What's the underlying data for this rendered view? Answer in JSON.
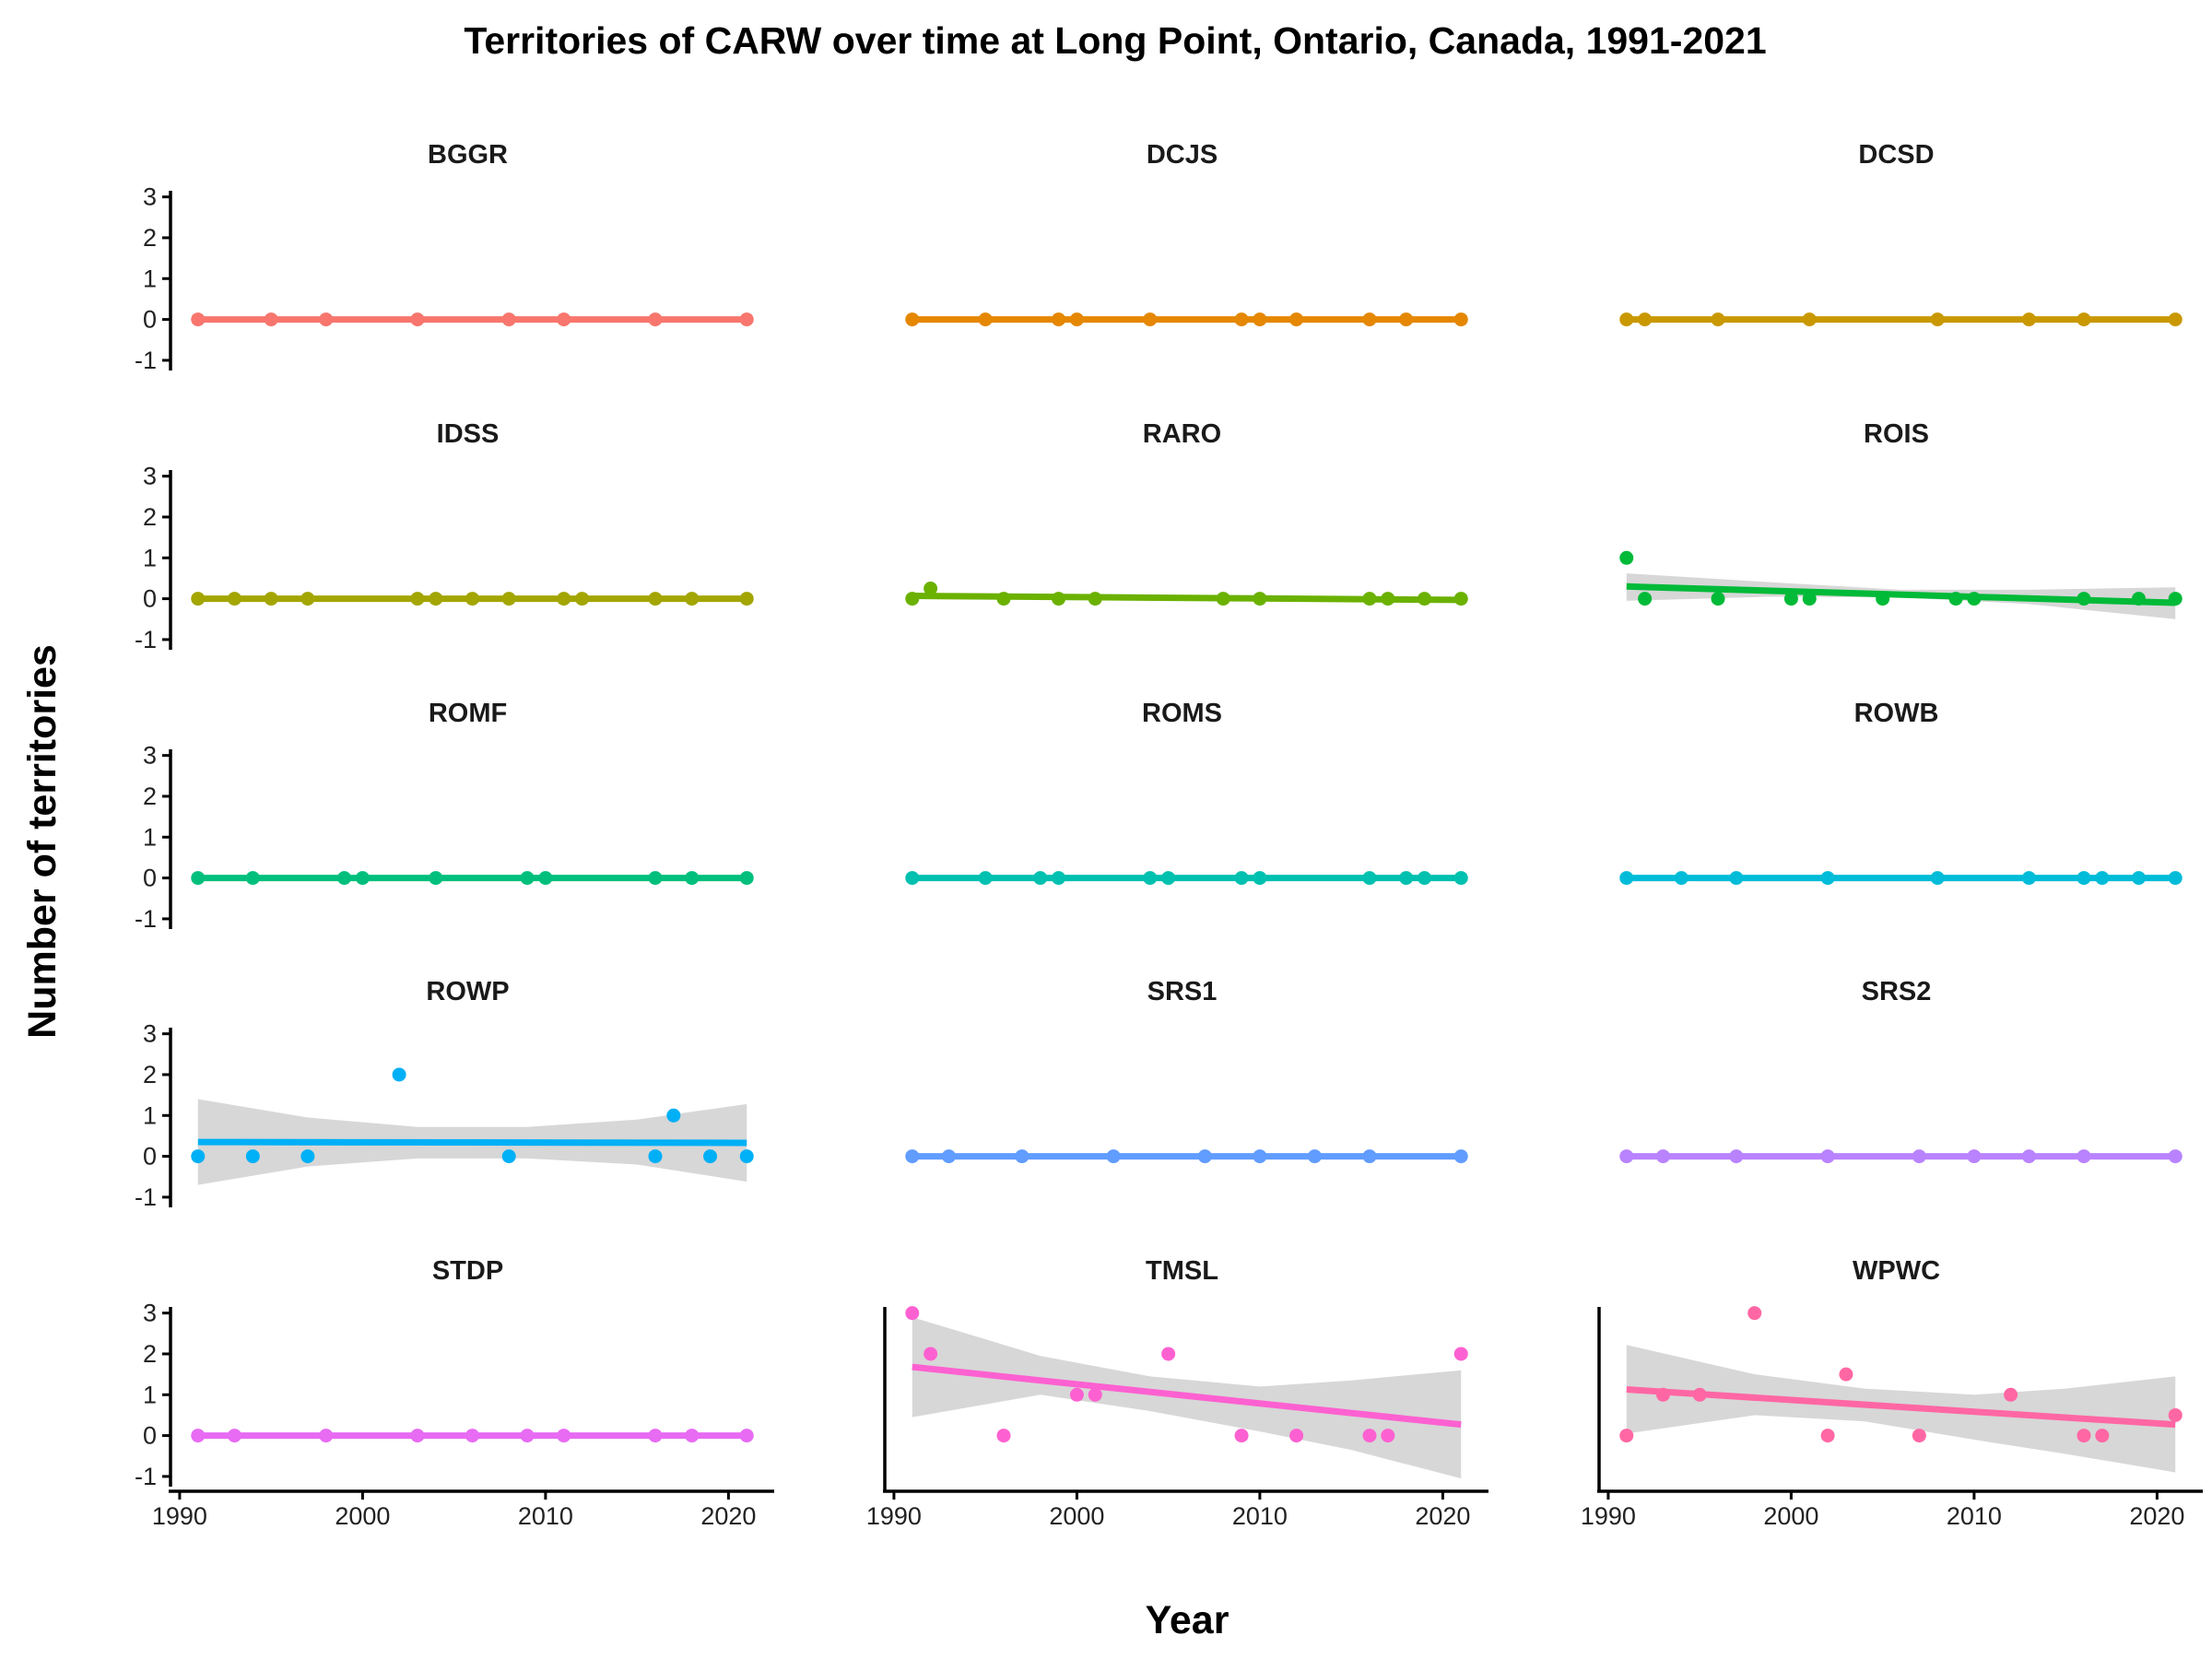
{
  "chart_data": {
    "type": "scatter",
    "title": "Territories of CARW over time at Long Point, Ontario, Canada, 1991-2021",
    "xlabel": "Year",
    "ylabel": "Number of territories",
    "xlim": [
      1989.5,
      2022.5
    ],
    "ylim": [
      -1.25,
      3.15
    ],
    "y_ticks": [
      "3",
      "2",
      "1",
      "0",
      "-1"
    ],
    "x_ticks": [
      "1990",
      "2000",
      "2010",
      "2020"
    ],
    "grid": false,
    "legend": "none",
    "panels": [
      {
        "name": "BGGR",
        "color": "#F8766D",
        "points": [
          [
            1991,
            0
          ],
          [
            1995,
            0
          ],
          [
            1998,
            0
          ],
          [
            2003,
            0
          ],
          [
            2008,
            0
          ],
          [
            2011,
            0
          ],
          [
            2016,
            0
          ],
          [
            2021,
            0
          ]
        ],
        "trend": [
          1991,
          0,
          2021,
          0
        ],
        "band": null
      },
      {
        "name": "DCJS",
        "color": "#E58700",
        "points": [
          [
            1991,
            0
          ],
          [
            1995,
            0
          ],
          [
            1999,
            0
          ],
          [
            2000,
            0
          ],
          [
            2004,
            0
          ],
          [
            2009,
            0
          ],
          [
            2010,
            0
          ],
          [
            2012,
            0
          ],
          [
            2016,
            0
          ],
          [
            2018,
            0
          ],
          [
            2021,
            0
          ]
        ],
        "trend": [
          1991,
          0,
          2021,
          0
        ],
        "band": null
      },
      {
        "name": "DCSD",
        "color": "#C99800",
        "points": [
          [
            1991,
            0
          ],
          [
            1992,
            0
          ],
          [
            1996,
            0
          ],
          [
            2001,
            0
          ],
          [
            2008,
            0
          ],
          [
            2013,
            0
          ],
          [
            2016,
            0
          ],
          [
            2021,
            0
          ]
        ],
        "trend": [
          1991,
          0,
          2021,
          0
        ],
        "band": null
      },
      {
        "name": "IDSS",
        "color": "#A3A500",
        "points": [
          [
            1991,
            0
          ],
          [
            1993,
            0
          ],
          [
            1995,
            0
          ],
          [
            1997,
            0
          ],
          [
            2003,
            0
          ],
          [
            2004,
            0
          ],
          [
            2006,
            0
          ],
          [
            2008,
            0
          ],
          [
            2011,
            0
          ],
          [
            2012,
            0
          ],
          [
            2016,
            0
          ],
          [
            2018,
            0
          ],
          [
            2021,
            0
          ]
        ],
        "trend": [
          1991,
          0,
          2021,
          0
        ],
        "band": null
      },
      {
        "name": "RARO",
        "color": "#6BB100",
        "points": [
          [
            1991,
            0
          ],
          [
            1992,
            0.25
          ],
          [
            1996,
            0
          ],
          [
            1999,
            0
          ],
          [
            2001,
            0
          ],
          [
            2008,
            0
          ],
          [
            2010,
            0
          ],
          [
            2016,
            0
          ],
          [
            2017,
            0
          ],
          [
            2019,
            0
          ],
          [
            2021,
            0
          ]
        ],
        "trend": [
          1991,
          0.07,
          2021,
          -0.03
        ],
        "band": null
      },
      {
        "name": "ROIS",
        "color": "#00BA38",
        "points": [
          [
            1991,
            1
          ],
          [
            1992,
            0
          ],
          [
            1996,
            0
          ],
          [
            2000,
            0
          ],
          [
            2001,
            0
          ],
          [
            2005,
            0
          ],
          [
            2009,
            0
          ],
          [
            2010,
            0
          ],
          [
            2016,
            0
          ],
          [
            2019,
            0
          ],
          [
            2021,
            0
          ]
        ],
        "trend": [
          1991,
          0.3,
          2021,
          -0.1
        ],
        "band": [
          [
            1991,
            -0.05,
            0.62
          ],
          [
            1999,
            0.05,
            0.4
          ],
          [
            2006,
            0.03,
            0.22
          ],
          [
            2013,
            -0.13,
            0.22
          ],
          [
            2021,
            -0.5,
            0.28
          ]
        ]
      },
      {
        "name": "ROMF",
        "color": "#00BF7D",
        "points": [
          [
            1991,
            0
          ],
          [
            1994,
            0
          ],
          [
            1999,
            0
          ],
          [
            2000,
            0
          ],
          [
            2004,
            0
          ],
          [
            2009,
            0
          ],
          [
            2010,
            0
          ],
          [
            2016,
            0
          ],
          [
            2018,
            0
          ],
          [
            2021,
            0
          ]
        ],
        "trend": [
          1991,
          0,
          2021,
          0
        ],
        "band": null
      },
      {
        "name": "ROMS",
        "color": "#00C0AF",
        "points": [
          [
            1991,
            0
          ],
          [
            1995,
            0
          ],
          [
            1998,
            0
          ],
          [
            1999,
            0
          ],
          [
            2004,
            0
          ],
          [
            2005,
            0
          ],
          [
            2009,
            0
          ],
          [
            2010,
            0
          ],
          [
            2016,
            0
          ],
          [
            2018,
            0
          ],
          [
            2019,
            0
          ],
          [
            2021,
            0
          ]
        ],
        "trend": [
          1991,
          0,
          2021,
          0
        ],
        "band": null
      },
      {
        "name": "ROWB",
        "color": "#00BCD8",
        "points": [
          [
            1991,
            0
          ],
          [
            1994,
            0
          ],
          [
            1997,
            0
          ],
          [
            2002,
            0
          ],
          [
            2008,
            0
          ],
          [
            2013,
            0
          ],
          [
            2016,
            0
          ],
          [
            2017,
            0
          ],
          [
            2019,
            0
          ],
          [
            2021,
            0
          ]
        ],
        "trend": [
          1991,
          0,
          2021,
          0
        ],
        "band": null
      },
      {
        "name": "ROWP",
        "color": "#00B0F6",
        "points": [
          [
            1991,
            0
          ],
          [
            1994,
            0
          ],
          [
            1997,
            0
          ],
          [
            2002,
            2
          ],
          [
            2008,
            0
          ],
          [
            2016,
            0
          ],
          [
            2017,
            1
          ],
          [
            2019,
            0
          ],
          [
            2021,
            0
          ]
        ],
        "trend": [
          1991,
          0.35,
          2021,
          0.33
        ],
        "band": [
          [
            1991,
            -0.7,
            1.4
          ],
          [
            1997,
            -0.25,
            0.95
          ],
          [
            2003,
            -0.05,
            0.72
          ],
          [
            2009,
            -0.05,
            0.72
          ],
          [
            2015,
            -0.2,
            0.9
          ],
          [
            2021,
            -0.62,
            1.28
          ]
        ]
      },
      {
        "name": "SRS1",
        "color": "#619CFF",
        "points": [
          [
            1991,
            0
          ],
          [
            1993,
            0
          ],
          [
            1997,
            0
          ],
          [
            2002,
            0
          ],
          [
            2007,
            0
          ],
          [
            2010,
            0
          ],
          [
            2013,
            0
          ],
          [
            2016,
            0
          ],
          [
            2021,
            0
          ]
        ],
        "trend": [
          1991,
          0,
          2021,
          0
        ],
        "band": null
      },
      {
        "name": "SRS2",
        "color": "#B983FF",
        "points": [
          [
            1991,
            0
          ],
          [
            1993,
            0
          ],
          [
            1997,
            0
          ],
          [
            2002,
            0
          ],
          [
            2007,
            0
          ],
          [
            2010,
            0
          ],
          [
            2013,
            0
          ],
          [
            2016,
            0
          ],
          [
            2021,
            0
          ]
        ],
        "trend": [
          1991,
          0,
          2021,
          0
        ],
        "band": null
      },
      {
        "name": "STDP",
        "color": "#E76BF3",
        "points": [
          [
            1991,
            0
          ],
          [
            1993,
            0
          ],
          [
            1998,
            0
          ],
          [
            2003,
            0
          ],
          [
            2006,
            0
          ],
          [
            2009,
            0
          ],
          [
            2011,
            0
          ],
          [
            2016,
            0
          ],
          [
            2018,
            0
          ],
          [
            2021,
            0
          ]
        ],
        "trend": [
          1991,
          0,
          2021,
          0
        ],
        "band": null
      },
      {
        "name": "TMSL",
        "color": "#FD61D1",
        "points": [
          [
            1991,
            3
          ],
          [
            1992,
            2
          ],
          [
            1996,
            0
          ],
          [
            2000,
            1
          ],
          [
            2001,
            1
          ],
          [
            2005,
            2
          ],
          [
            2009,
            0
          ],
          [
            2012,
            0
          ],
          [
            2016,
            0
          ],
          [
            2017,
            0
          ],
          [
            2021,
            2
          ]
        ],
        "trend": [
          1991,
          1.68,
          2021,
          0.27
        ],
        "band": [
          [
            1991,
            0.45,
            2.9
          ],
          [
            1998,
            1.0,
            1.95
          ],
          [
            2004,
            0.6,
            1.45
          ],
          [
            2010,
            0.1,
            1.2
          ],
          [
            2015,
            -0.35,
            1.35
          ],
          [
            2021,
            -1.05,
            1.6
          ]
        ]
      },
      {
        "name": "WPWC",
        "color": "#FF67A4",
        "points": [
          [
            1991,
            0
          ],
          [
            1993,
            1
          ],
          [
            1995,
            1
          ],
          [
            1998,
            3
          ],
          [
            2002,
            0
          ],
          [
            2003,
            1.5
          ],
          [
            2007,
            0
          ],
          [
            2012,
            1
          ],
          [
            2016,
            0
          ],
          [
            2017,
            0
          ],
          [
            2021,
            0.5
          ]
        ],
        "trend": [
          1991,
          1.13,
          2021,
          0.27
        ],
        "band": [
          [
            1991,
            0.05,
            2.22
          ],
          [
            1998,
            0.5,
            1.5
          ],
          [
            2004,
            0.35,
            1.15
          ],
          [
            2010,
            -0.1,
            1.0
          ],
          [
            2015,
            -0.45,
            1.15
          ],
          [
            2021,
            -0.9,
            1.45
          ]
        ]
      }
    ]
  }
}
